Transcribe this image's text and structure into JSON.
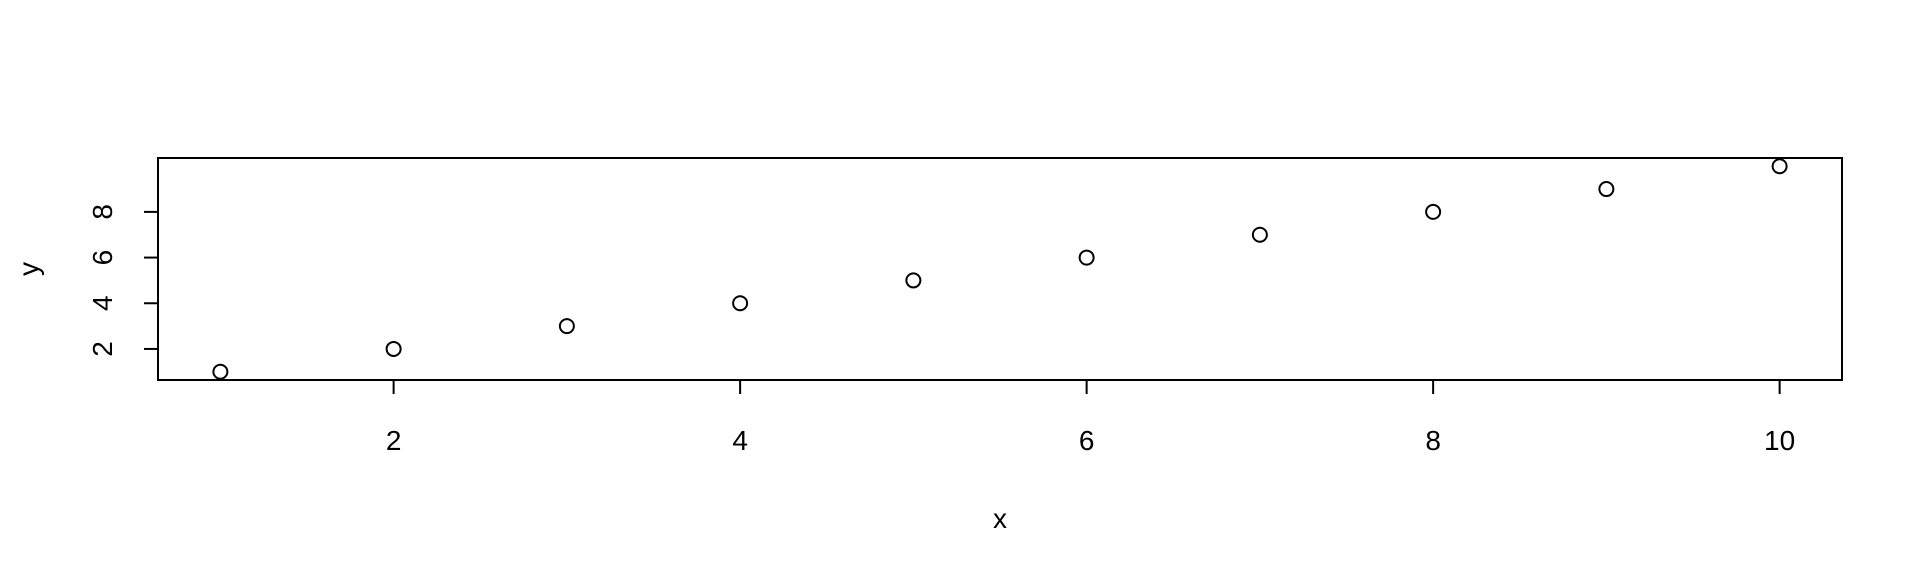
{
  "chart_data": {
    "type": "scatter",
    "title": "",
    "xlabel": "x",
    "ylabel": "y",
    "x": [
      1,
      2,
      3,
      4,
      5,
      6,
      7,
      8,
      9,
      10
    ],
    "y": [
      1,
      2,
      3,
      4,
      5,
      6,
      7,
      8,
      9,
      10
    ],
    "xlim": [
      0.64,
      10.36
    ],
    "ylim": [
      0.64,
      10.36
    ],
    "x_ticks": [
      2,
      4,
      6,
      8,
      10
    ],
    "y_ticks": [
      2,
      4,
      6,
      8
    ],
    "x_tick_labels": [
      "2",
      "4",
      "6",
      "8",
      "10"
    ],
    "y_tick_labels": [
      "2",
      "4",
      "6",
      "8"
    ],
    "marker": "open-circle",
    "grid": false,
    "legend": "none",
    "colors": {
      "marker": "#000000",
      "axis": "#000000",
      "background": "#ffffff"
    }
  }
}
